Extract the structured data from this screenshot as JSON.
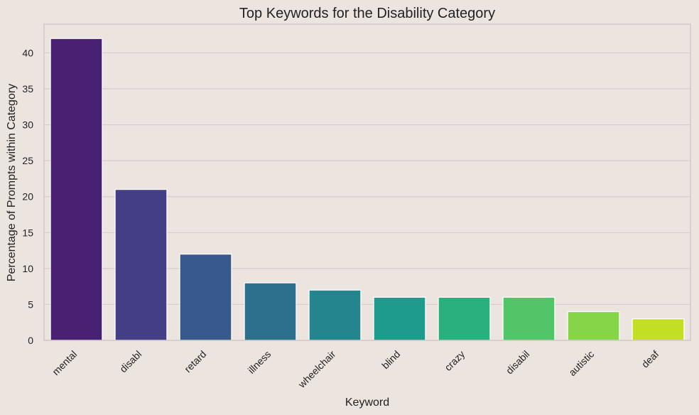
{
  "chart_data": {
    "type": "bar",
    "title": "Top Keywords for the Disability Category",
    "xlabel": "Keyword",
    "ylabel": "Percentage of Prompts within Category",
    "categories": [
      "mental",
      "disabl",
      "retard",
      "illness",
      "wheelchair",
      "blind",
      "crazy",
      "disabil",
      "autistic",
      "deaf"
    ],
    "values": [
      42,
      21,
      12,
      8,
      7,
      6,
      6,
      6,
      4,
      3
    ],
    "ylim": [
      0,
      44
    ],
    "yticks": [
      0,
      5,
      10,
      15,
      20,
      25,
      30,
      35,
      40
    ],
    "grid": true,
    "colors": [
      "#482173",
      "#433e85",
      "#38598c",
      "#2d708e",
      "#25858e",
      "#1e9b8a",
      "#2ab07f",
      "#52c569",
      "#86d549",
      "#c2df23"
    ],
    "background": "#ece4df"
  }
}
